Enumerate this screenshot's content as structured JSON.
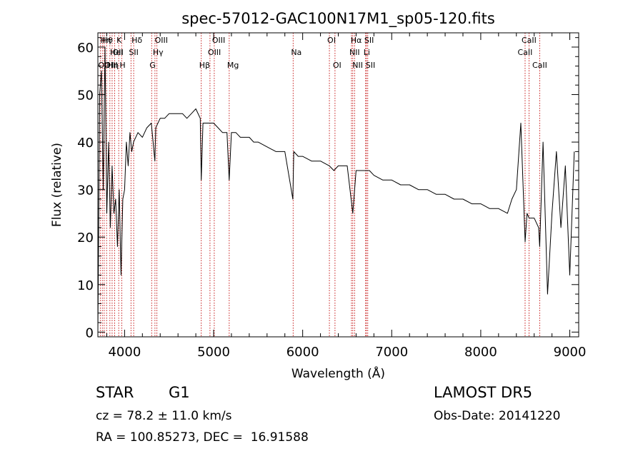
{
  "chart_data": {
    "type": "line",
    "title": "spec-57012-GAC100N17M1_sp05-120.fits",
    "xlabel": "Wavelength (Å)",
    "ylabel": "Flux (relative)",
    "xlim": [
      3700,
      9100
    ],
    "ylim": [
      -1,
      63
    ],
    "xticks": [
      4000,
      5000,
      6000,
      7000,
      8000,
      9000
    ],
    "xtick_labels": [
      "4000",
      "5000",
      "6000",
      "7000",
      "8000",
      "9000"
    ],
    "yticks": [
      0,
      10,
      20,
      30,
      40,
      50,
      60
    ],
    "ytick_labels": [
      "0",
      "10",
      "20",
      "30",
      "40",
      "50",
      "60"
    ],
    "grid": false,
    "line_color": "#000000",
    "marker_color": "#c00000",
    "series": [
      {
        "values": {
          "x": [
            3700,
            3720,
            3740,
            3760,
            3780,
            3800,
            3820,
            3840,
            3860,
            3880,
            3900,
            3920,
            3940,
            3960,
            3980,
            4000,
            4020,
            4040,
            4060,
            4080,
            4100,
            4150,
            4200,
            4250,
            4300,
            4340,
            4350,
            4400,
            4450,
            4500,
            4550,
            4600,
            4650,
            4700,
            4750,
            4800,
            4850,
            4861,
            4880,
            4900,
            4950,
            5000,
            5050,
            5100,
            5150,
            5175,
            5200,
            5250,
            5300,
            5350,
            5400,
            5450,
            5500,
            5600,
            5700,
            5800,
            5890,
            5900,
            5950,
            6000,
            6100,
            6200,
            6300,
            6350,
            6400,
            6500,
            6563,
            6600,
            6650,
            6700,
            6750,
            6800,
            6900,
            7000,
            7100,
            7200,
            7300,
            7400,
            7500,
            7600,
            7700,
            7800,
            7900,
            8000,
            8100,
            8200,
            8300,
            8350,
            8400,
            8450,
            8498,
            8520,
            8542,
            8560,
            8600,
            8650,
            8662,
            8700,
            8750,
            8800,
            8850,
            8900,
            8950,
            9000,
            9050
          ],
          "y": [
            0,
            50,
            55,
            30,
            60,
            25,
            40,
            22,
            35,
            25,
            28,
            18,
            30,
            12,
            28,
            30,
            40,
            35,
            42,
            38,
            40,
            42,
            41,
            43,
            44,
            36,
            43,
            45,
            45,
            46,
            46,
            46,
            46,
            45,
            46,
            47,
            45,
            32,
            44,
            44,
            44,
            44,
            43,
            42,
            42,
            32,
            42,
            42,
            41,
            41,
            41,
            40,
            40,
            39,
            38,
            38,
            28,
            38,
            37,
            37,
            36,
            36,
            35,
            34,
            35,
            35,
            25,
            34,
            34,
            34,
            34,
            33,
            32,
            32,
            31,
            31,
            30,
            30,
            29,
            29,
            28,
            28,
            27,
            27,
            26,
            26,
            25,
            28,
            30,
            44,
            19,
            25,
            24,
            24,
            24,
            22,
            18,
            40,
            8,
            25,
            38,
            22,
            35,
            12,
            38
          ]
        }
      }
    ],
    "line_markers": [
      {
        "x": 3727,
        "label": "OII",
        "row": 3,
        "anchor": "start"
      },
      {
        "x": 3750,
        "label": "Hη",
        "row": 1,
        "anchor": "start"
      },
      {
        "x": 3771,
        "label": "Hθ",
        "row": 1,
        "anchor": "start"
      },
      {
        "x": 3798,
        "label": "OIII",
        "row": 3,
        "anchor": "start"
      },
      {
        "x": 3835,
        "label": "Hη",
        "row": 3,
        "anchor": "start"
      },
      {
        "x": 3860,
        "label": "HeI",
        "row": 2,
        "anchor": "start"
      },
      {
        "x": 3889,
        "label": "OII",
        "row": 2,
        "anchor": "start"
      },
      {
        "x": 3934,
        "label": "K",
        "row": 1,
        "anchor": "start"
      },
      {
        "x": 3968,
        "label": "H",
        "row": 3,
        "anchor": "start"
      },
      {
        "x": 4072,
        "label": "SII",
        "row": 2,
        "anchor": "start"
      },
      {
        "x": 4102,
        "label": "Hδ",
        "row": 1,
        "anchor": "start"
      },
      {
        "x": 4304,
        "label": "G",
        "row": 3,
        "anchor": "start"
      },
      {
        "x": 4341,
        "label": "Hγ",
        "row": 2,
        "anchor": "start"
      },
      {
        "x": 4363,
        "label": "OIII",
        "row": 1,
        "anchor": "start"
      },
      {
        "x": 4861,
        "label": "Hβ",
        "row": 3,
        "anchor": "start"
      },
      {
        "x": 4959,
        "label": "OIII",
        "row": 2,
        "anchor": "start"
      },
      {
        "x": 5007,
        "label": "OIII",
        "row": 1,
        "anchor": "start"
      },
      {
        "x": 5175,
        "label": "Mg",
        "row": 3,
        "anchor": "start"
      },
      {
        "x": 5893,
        "label": "Na",
        "row": 2,
        "anchor": "start"
      },
      {
        "x": 6300,
        "label": "OI",
        "row": 1,
        "anchor": "start"
      },
      {
        "x": 6363,
        "label": "OI",
        "row": 3,
        "anchor": "start"
      },
      {
        "x": 6548,
        "label": "NII",
        "row": 2,
        "anchor": "start"
      },
      {
        "x": 6563,
        "label": "Hα",
        "row": 1,
        "anchor": "start"
      },
      {
        "x": 6583,
        "label": "NII",
        "row": 3,
        "anchor": "start"
      },
      {
        "x": 6707,
        "label": "Li",
        "row": 2,
        "anchor": "start"
      },
      {
        "x": 6716,
        "label": "SII",
        "row": 1,
        "anchor": "start"
      },
      {
        "x": 6731,
        "label": "SII",
        "row": 3,
        "anchor": "start"
      },
      {
        "x": 8498,
        "label": "CaII",
        "row": 2,
        "anchor": "middle"
      },
      {
        "x": 8542,
        "label": "CaII",
        "row": 1,
        "anchor": "middle"
      },
      {
        "x": 8662,
        "label": "CaII",
        "row": 3,
        "anchor": "middle"
      }
    ]
  },
  "footer": {
    "object_class": "STAR",
    "subclass": "G1",
    "survey": "LAMOST DR5",
    "cz": "cz = 78.2 ± 11.0 km/s",
    "obs_date": "Obs-Date: 20141220",
    "radec": "RA = 100.85273, DEC =  16.91588"
  }
}
